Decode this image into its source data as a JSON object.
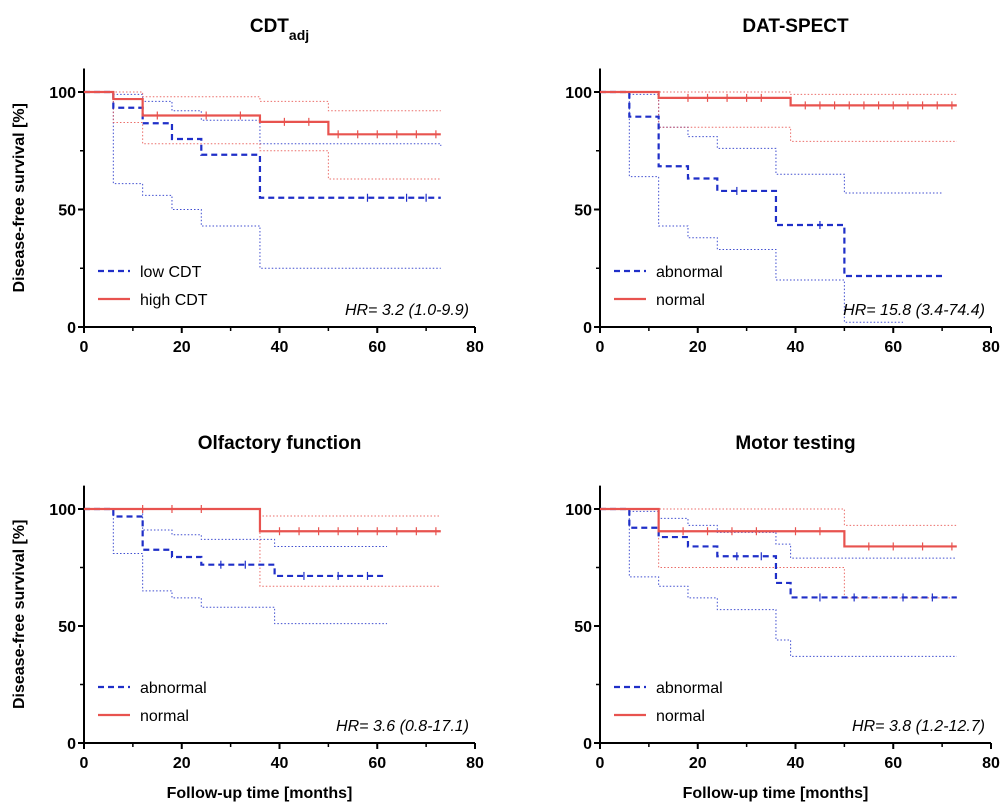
{
  "chart_data": [
    {
      "type": "line",
      "title": "CDT",
      "title_sub": "adj",
      "xlabel": "",
      "ylabel": "Disease-free survival [%]",
      "xlim": [
        0,
        80
      ],
      "ylim": [
        0,
        110
      ],
      "xticks": [
        "0",
        "20",
        "40",
        "60",
        "80"
      ],
      "yticks": [
        "0",
        "50",
        "100"
      ],
      "grid": false,
      "legend_position": "bottom-left",
      "annotation": "HR= 3.2 (1.0-9.9)",
      "series": [
        {
          "name": "low CDT",
          "color": "#1f2fc8",
          "style": "dashed",
          "x": [
            0,
            6,
            12,
            18,
            24,
            36,
            73
          ],
          "y": [
            100,
            93.3,
            86.7,
            80,
            73.3,
            55,
            55
          ],
          "censor_x": [
            58,
            66,
            70
          ],
          "ci_upper": [
            [
              0,
              100
            ],
            [
              6,
              99
            ],
            [
              12,
              96
            ],
            [
              18,
              92
            ],
            [
              24,
              88
            ],
            [
              36,
              78
            ],
            [
              73,
              77
            ]
          ],
          "ci_lower": [
            [
              0,
              100
            ],
            [
              6,
              61
            ],
            [
              12,
              56
            ],
            [
              18,
              50
            ],
            [
              24,
              43
            ],
            [
              36,
              25
            ],
            [
              73,
              25
            ]
          ]
        },
        {
          "name": "high CDT",
          "color": "#e8534f",
          "style": "solid",
          "x": [
            0,
            6,
            12,
            36,
            50,
            73
          ],
          "y": [
            100,
            97,
            90,
            87.3,
            82,
            82
          ],
          "censor_x": [
            15,
            25,
            32,
            41,
            46,
            52,
            56,
            60,
            64,
            68,
            72
          ],
          "ci_upper": [
            [
              0,
              100
            ],
            [
              6,
              100
            ],
            [
              12,
              98
            ],
            [
              36,
              96
            ],
            [
              50,
              92
            ],
            [
              73,
              92
            ]
          ],
          "ci_lower": [
            [
              0,
              100
            ],
            [
              6,
              87
            ],
            [
              12,
              78
            ],
            [
              36,
              75
            ],
            [
              50,
              63
            ],
            [
              73,
              63
            ]
          ]
        }
      ]
    },
    {
      "type": "line",
      "title": "DAT-SPECT",
      "xlabel": "",
      "ylabel": "",
      "xlim": [
        0,
        80
      ],
      "ylim": [
        0,
        110
      ],
      "xticks": [
        "0",
        "20",
        "40",
        "60",
        "80"
      ],
      "yticks": [
        "0",
        "50",
        "100"
      ],
      "grid": false,
      "legend_position": "bottom-left",
      "annotation": "HR= 15.8 (3.4-74.4)",
      "series": [
        {
          "name": "abnormal",
          "color": "#1f2fc8",
          "style": "dashed",
          "x": [
            0,
            6,
            12,
            18,
            24,
            36,
            50,
            70
          ],
          "y": [
            100,
            89.5,
            68.4,
            63.2,
            57.9,
            43.4,
            21.7,
            21.7
          ],
          "censor_x": [
            28,
            45
          ],
          "ci_upper": [
            [
              0,
              100
            ],
            [
              6,
              99
            ],
            [
              12,
              85
            ],
            [
              18,
              81
            ],
            [
              24,
              76
            ],
            [
              36,
              65
            ],
            [
              50,
              57
            ],
            [
              70,
              57
            ]
          ],
          "ci_lower": [
            [
              0,
              100
            ],
            [
              6,
              64
            ],
            [
              12,
              43
            ],
            [
              18,
              38
            ],
            [
              24,
              33
            ],
            [
              36,
              20
            ],
            [
              50,
              2
            ],
            [
              62,
              2
            ]
          ]
        },
        {
          "name": "normal",
          "color": "#e8534f",
          "style": "solid",
          "x": [
            0,
            12,
            39,
            73
          ],
          "y": [
            100,
            97.5,
            94.3,
            94.3
          ],
          "censor_x": [
            18,
            22,
            26,
            30,
            33,
            42,
            45,
            48,
            51,
            54,
            57,
            60,
            63,
            66,
            69,
            72
          ],
          "ci_upper": [
            [
              0,
              100
            ],
            [
              12,
              100
            ],
            [
              39,
              99
            ],
            [
              73,
              99
            ]
          ],
          "ci_lower": [
            [
              0,
              100
            ],
            [
              12,
              85
            ],
            [
              39,
              79
            ],
            [
              73,
              79
            ]
          ]
        }
      ]
    },
    {
      "type": "line",
      "title": "Olfactory function",
      "xlabel": "Follow-up time [months]",
      "ylabel": "Disease-free survival [%]",
      "xlim": [
        0,
        80
      ],
      "ylim": [
        0,
        110
      ],
      "xticks": [
        "0",
        "20",
        "40",
        "60",
        "80"
      ],
      "yticks": [
        "0",
        "50",
        "100"
      ],
      "grid": false,
      "legend_position": "bottom-left",
      "annotation": "HR= 3.6 (0.8-17.1)",
      "series": [
        {
          "name": "abnormal",
          "color": "#1f2fc8",
          "style": "dashed",
          "x": [
            0,
            6,
            12,
            18,
            24,
            39,
            62
          ],
          "y": [
            100,
            96.8,
            82.6,
            79.5,
            76.2,
            71.4,
            71.4
          ],
          "censor_x": [
            28,
            33,
            45,
            52,
            58
          ],
          "ci_upper": [
            [
              0,
              100
            ],
            [
              6,
              100
            ],
            [
              12,
              91
            ],
            [
              18,
              89
            ],
            [
              24,
              87
            ],
            [
              39,
              84
            ],
            [
              62,
              84
            ]
          ],
          "ci_lower": [
            [
              0,
              100
            ],
            [
              6,
              81
            ],
            [
              12,
              65
            ],
            [
              18,
              62
            ],
            [
              24,
              58
            ],
            [
              39,
              51
            ],
            [
              62,
              51
            ]
          ]
        },
        {
          "name": "normal",
          "color": "#e8534f",
          "style": "solid",
          "x": [
            0,
            36,
            73
          ],
          "y": [
            100,
            90.5,
            90.5
          ],
          "censor_x": [
            12,
            18,
            24,
            40,
            44,
            48,
            52,
            56,
            60,
            64,
            68,
            72
          ],
          "ci_upper": [
            [
              0,
              100
            ],
            [
              36,
              97
            ],
            [
              73,
              97
            ]
          ],
          "ci_lower": [
            [
              0,
              100
            ],
            [
              36,
              67
            ],
            [
              73,
              67
            ]
          ]
        }
      ]
    },
    {
      "type": "line",
      "title": "Motor testing",
      "xlabel": "Follow-up time [months]",
      "ylabel": "",
      "xlim": [
        0,
        80
      ],
      "ylim": [
        0,
        110
      ],
      "xticks": [
        "0",
        "20",
        "40",
        "60",
        "80"
      ],
      "yticks": [
        "0",
        "50",
        "100"
      ],
      "grid": false,
      "legend_position": "bottom-left",
      "annotation": "HR= 3.8 (1.2-12.7)",
      "series": [
        {
          "name": "abnormal",
          "color": "#1f2fc8",
          "style": "dashed",
          "x": [
            0,
            6,
            12,
            18,
            24,
            36,
            39,
            73
          ],
          "y": [
            100,
            92,
            88,
            84,
            79.8,
            68.4,
            62.2,
            62.2
          ],
          "censor_x": [
            28,
            33,
            45,
            52,
            62,
            68
          ],
          "ci_upper": [
            [
              0,
              100
            ],
            [
              6,
              99
            ],
            [
              12,
              96
            ],
            [
              18,
              93
            ],
            [
              24,
              90
            ],
            [
              36,
              85
            ],
            [
              39,
              79
            ],
            [
              73,
              79
            ]
          ],
          "ci_lower": [
            [
              0,
              100
            ],
            [
              6,
              71
            ],
            [
              12,
              67
            ],
            [
              18,
              62
            ],
            [
              24,
              57
            ],
            [
              36,
              44
            ],
            [
              39,
              37
            ],
            [
              73,
              37
            ]
          ]
        },
        {
          "name": "normal",
          "color": "#e8534f",
          "style": "solid",
          "x": [
            0,
            12,
            50,
            73
          ],
          "y": [
            100,
            90.5,
            84,
            84
          ],
          "censor_x": [
            17,
            22,
            27,
            32,
            40,
            45,
            55,
            60,
            66,
            72
          ],
          "ci_upper": [
            [
              0,
              100
            ],
            [
              12,
              100
            ],
            [
              50,
              93
            ],
            [
              73,
              93
            ]
          ],
          "ci_lower": [
            [
              0,
              100
            ],
            [
              12,
              75
            ],
            [
              50,
              62
            ],
            [
              73,
              62
            ]
          ]
        }
      ]
    }
  ]
}
